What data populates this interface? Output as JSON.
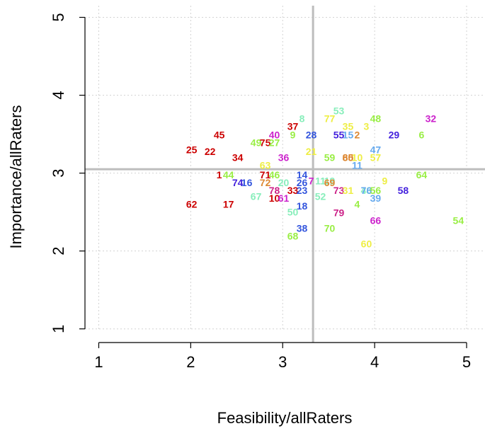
{
  "chart_data": {
    "type": "scatter",
    "xlabel": "Feasibility/allRaters",
    "ylabel": "Importance/allRaters",
    "xlim": [
      0.85,
      5.2
    ],
    "ylim": [
      0.97,
      5.15
    ],
    "xticks": [
      1,
      2,
      3,
      4,
      5
    ],
    "yticks": [
      1,
      2,
      3,
      4,
      5
    ],
    "grid": true,
    "reference_lines": {
      "x": 3.33,
      "y": 3.05,
      "color": "#bdbdbd"
    },
    "points": [
      {
        "label": "62",
        "x": 2.01,
        "y": 2.6,
        "color": "#cc0000"
      },
      {
        "label": "17",
        "x": 2.41,
        "y": 2.6,
        "color": "#cc0000"
      },
      {
        "label": "25",
        "x": 2.01,
        "y": 3.3,
        "color": "#cc0000"
      },
      {
        "label": "22",
        "x": 2.21,
        "y": 3.28,
        "color": "#cc0000"
      },
      {
        "label": "45",
        "x": 2.31,
        "y": 3.49,
        "color": "#cc0000"
      },
      {
        "label": "34",
        "x": 2.51,
        "y": 3.2,
        "color": "#cc0000"
      },
      {
        "label": "1",
        "x": 2.31,
        "y": 2.98,
        "color": "#cc0000"
      },
      {
        "label": "44",
        "x": 2.41,
        "y": 2.98,
        "color": "#99ee44"
      },
      {
        "label": "74",
        "x": 2.51,
        "y": 2.88,
        "color": "#4422dd"
      },
      {
        "label": "16",
        "x": 2.61,
        "y": 2.88,
        "color": "#3355dd"
      },
      {
        "label": "67",
        "x": 2.71,
        "y": 2.7,
        "color": "#88eebb"
      },
      {
        "label": "49",
        "x": 2.71,
        "y": 3.39,
        "color": "#99ee44"
      },
      {
        "label": "75",
        "x": 2.81,
        "y": 3.39,
        "color": "#cc0000"
      },
      {
        "label": "27",
        "x": 2.91,
        "y": 3.39,
        "color": "#99ee44"
      },
      {
        "label": "40",
        "x": 2.91,
        "y": 3.49,
        "color": "#cc22cc"
      },
      {
        "label": "9",
        "x": 3.11,
        "y": 3.49,
        "color": "#99ee44"
      },
      {
        "label": "37",
        "x": 3.11,
        "y": 3.6,
        "color": "#cc0000"
      },
      {
        "label": "8",
        "x": 3.21,
        "y": 3.7,
        "color": "#88eebb"
      },
      {
        "label": "63",
        "x": 2.81,
        "y": 3.1,
        "color": "#eeee44"
      },
      {
        "label": "71",
        "x": 2.81,
        "y": 2.98,
        "color": "#cc0000"
      },
      {
        "label": "46",
        "x": 2.91,
        "y": 2.98,
        "color": "#99ee44"
      },
      {
        "label": "72",
        "x": 2.81,
        "y": 2.88,
        "color": "#dd8833"
      },
      {
        "label": "20",
        "x": 3.01,
        "y": 2.88,
        "color": "#88eebb"
      },
      {
        "label": "36",
        "x": 3.01,
        "y": 3.2,
        "color": "#cc22cc"
      },
      {
        "label": "78",
        "x": 2.91,
        "y": 2.78,
        "color": "#cc2288"
      },
      {
        "label": "10",
        "x": 2.91,
        "y": 2.68,
        "color": "#cc0000"
      },
      {
        "label": "61",
        "x": 3.01,
        "y": 2.68,
        "color": "#cc22cc"
      },
      {
        "label": "33",
        "x": 3.11,
        "y": 2.78,
        "color": "#cc0000"
      },
      {
        "label": "23",
        "x": 3.21,
        "y": 2.78,
        "color": "#3355dd"
      },
      {
        "label": "26",
        "x": 3.21,
        "y": 2.88,
        "color": "#3355dd"
      },
      {
        "label": "14",
        "x": 3.21,
        "y": 2.98,
        "color": "#3355dd"
      },
      {
        "label": "7",
        "x": 3.31,
        "y": 2.9,
        "color": "#cc22cc"
      },
      {
        "label": "18",
        "x": 3.21,
        "y": 2.58,
        "color": "#3355dd"
      },
      {
        "label": "50",
        "x": 3.11,
        "y": 2.5,
        "color": "#88eebb"
      },
      {
        "label": "38",
        "x": 3.21,
        "y": 2.29,
        "color": "#3355dd"
      },
      {
        "label": "68",
        "x": 3.11,
        "y": 2.19,
        "color": "#99ee44"
      },
      {
        "label": "28",
        "x": 3.31,
        "y": 3.49,
        "color": "#3355dd"
      },
      {
        "label": "21",
        "x": 3.31,
        "y": 3.28,
        "color": "#eeee44"
      },
      {
        "label": "11",
        "x": 3.41,
        "y": 2.9,
        "color": "#88eebb"
      },
      {
        "label": "19",
        "x": 3.51,
        "y": 2.9,
        "color": "#88eebb"
      },
      {
        "label": "69",
        "x": 3.51,
        "y": 2.88,
        "color": "#dd8833"
      },
      {
        "label": "52",
        "x": 3.41,
        "y": 2.7,
        "color": "#88eebb"
      },
      {
        "label": "59",
        "x": 3.51,
        "y": 3.2,
        "color": "#99ee44"
      },
      {
        "label": "77",
        "x": 3.51,
        "y": 3.7,
        "color": "#eeee44"
      },
      {
        "label": "53",
        "x": 3.61,
        "y": 3.8,
        "color": "#88eebb"
      },
      {
        "label": "55",
        "x": 3.61,
        "y": 3.49,
        "color": "#4422dd"
      },
      {
        "label": "35",
        "x": 3.71,
        "y": 3.6,
        "color": "#eeee44"
      },
      {
        "label": "15",
        "x": 3.71,
        "y": 3.49,
        "color": "#66aaee"
      },
      {
        "label": "2",
        "x": 3.81,
        "y": 3.49,
        "color": "#dd8833"
      },
      {
        "label": "3",
        "x": 3.91,
        "y": 3.6,
        "color": "#eeee44"
      },
      {
        "label": "48",
        "x": 4.01,
        "y": 3.7,
        "color": "#99ee44"
      },
      {
        "label": "65",
        "x": 3.71,
        "y": 3.2,
        "color": "#dd8833"
      },
      {
        "label": "80",
        "x": 3.71,
        "y": 3.2,
        "color": "#dd8833"
      },
      {
        "label": "10",
        "x": 3.81,
        "y": 3.2,
        "color": "#eeee44"
      },
      {
        "label": "11",
        "x": 3.81,
        "y": 3.1,
        "color": "#66aaee"
      },
      {
        "label": "57",
        "x": 4.01,
        "y": 3.2,
        "color": "#eeee44"
      },
      {
        "label": "47",
        "x": 4.01,
        "y": 3.3,
        "color": "#66aaee"
      },
      {
        "label": "9",
        "x": 4.11,
        "y": 2.9,
        "color": "#eeee44"
      },
      {
        "label": "73",
        "x": 3.61,
        "y": 2.78,
        "color": "#cc2288"
      },
      {
        "label": "31",
        "x": 3.71,
        "y": 2.78,
        "color": "#eeee44"
      },
      {
        "label": "43",
        "x": 3.91,
        "y": 2.78,
        "color": "#88eebb"
      },
      {
        "label": "76",
        "x": 3.91,
        "y": 2.78,
        "color": "#66aaee"
      },
      {
        "label": "56",
        "x": 4.01,
        "y": 2.78,
        "color": "#99ee44"
      },
      {
        "label": "39",
        "x": 4.01,
        "y": 2.68,
        "color": "#66aaee"
      },
      {
        "label": "4",
        "x": 3.81,
        "y": 2.6,
        "color": "#99ee44"
      },
      {
        "label": "79",
        "x": 3.61,
        "y": 2.49,
        "color": "#cc2288"
      },
      {
        "label": "70",
        "x": 3.51,
        "y": 2.29,
        "color": "#99ee44"
      },
      {
        "label": "66",
        "x": 4.01,
        "y": 2.39,
        "color": "#cc22cc"
      },
      {
        "label": "60",
        "x": 3.91,
        "y": 2.09,
        "color": "#eeee44"
      },
      {
        "label": "58",
        "x": 4.31,
        "y": 2.78,
        "color": "#4422dd"
      },
      {
        "label": "64",
        "x": 4.51,
        "y": 2.98,
        "color": "#99ee44"
      },
      {
        "label": "29",
        "x": 4.21,
        "y": 3.49,
        "color": "#4422dd"
      },
      {
        "label": "6",
        "x": 4.51,
        "y": 3.49,
        "color": "#99ee44"
      },
      {
        "label": "32",
        "x": 4.61,
        "y": 3.7,
        "color": "#cc22cc"
      },
      {
        "label": "54",
        "x": 4.91,
        "y": 2.39,
        "color": "#99ee44"
      }
    ]
  }
}
